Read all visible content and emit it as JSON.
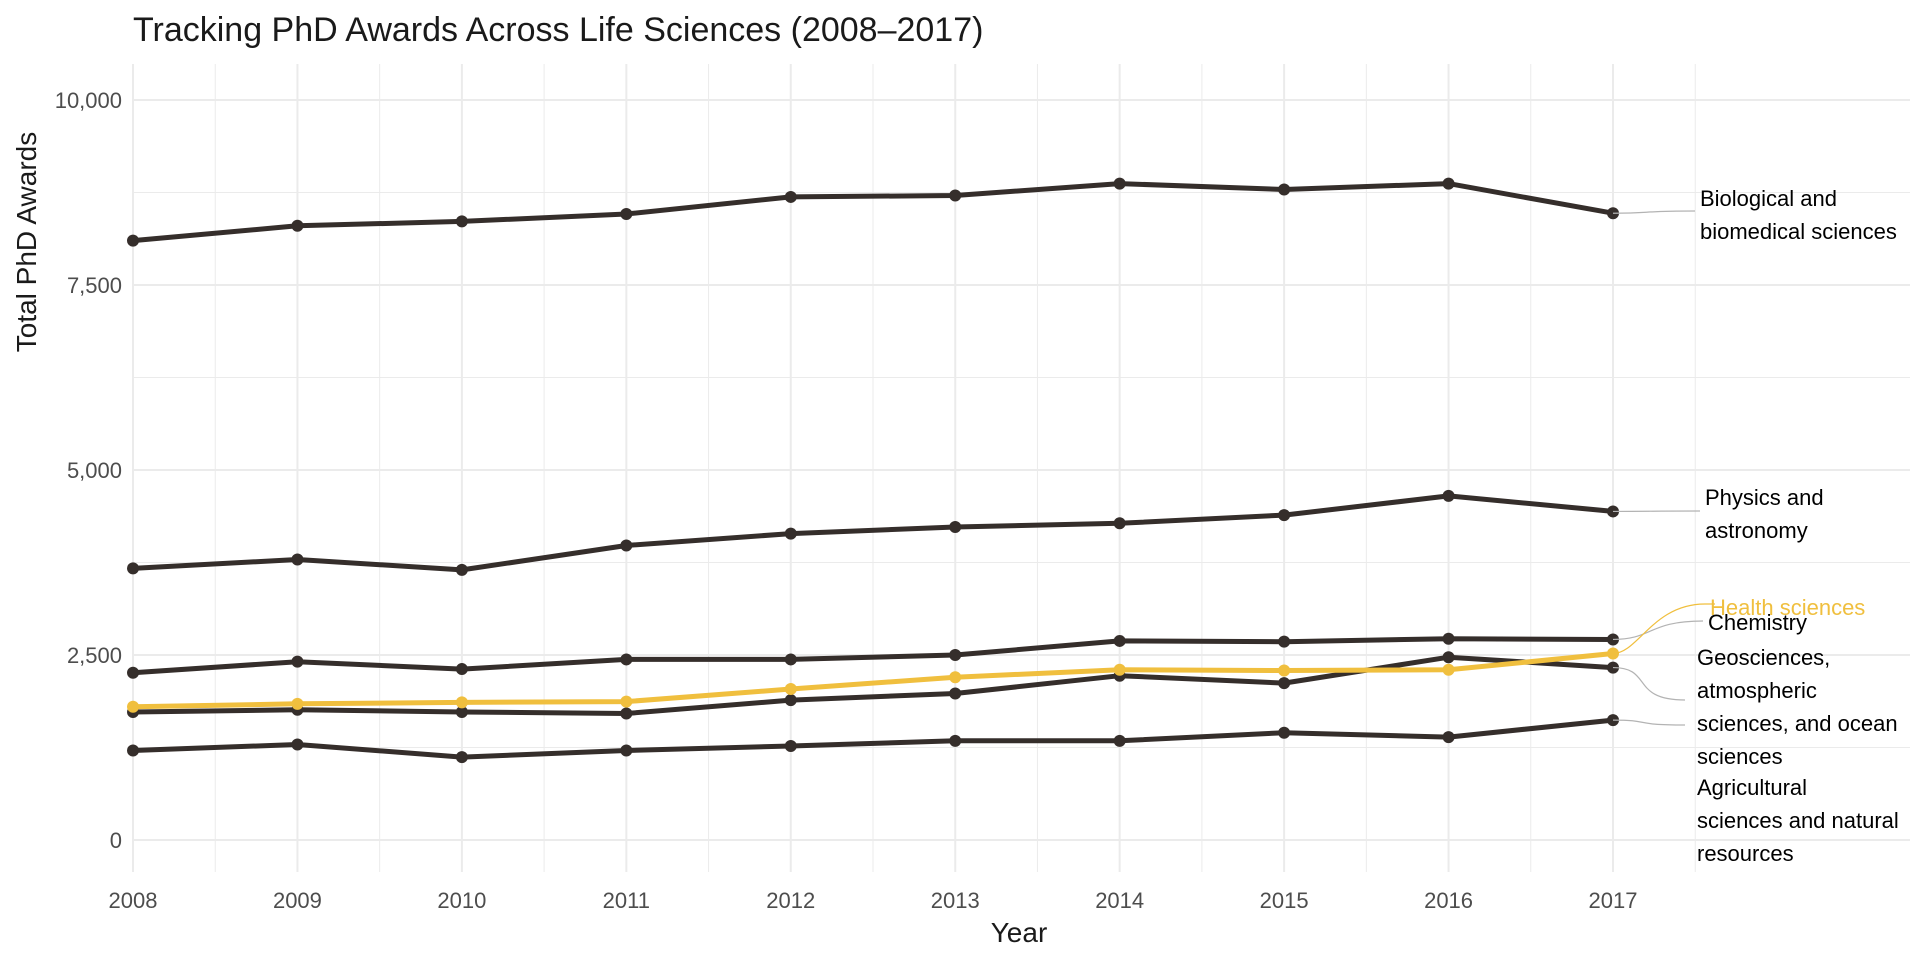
{
  "chart_data": {
    "type": "line",
    "title": "Tracking PhD Awards Across Life Sciences (2008–2017)",
    "xlabel": "Year",
    "ylabel": "Total PhD Awards",
    "x": [
      2008,
      2009,
      2010,
      2011,
      2012,
      2013,
      2014,
      2015,
      2016,
      2017
    ],
    "ylim": [
      -500,
      10500
    ],
    "y_ticks": [
      0,
      2500,
      5000,
      7500,
      10000
    ],
    "y_tick_labels": [
      "0",
      "2,500",
      "5,000",
      "7,500",
      "10,000"
    ],
    "x_tick_labels": [
      "2008",
      "2009",
      "2010",
      "2011",
      "2012",
      "2013",
      "2014",
      "2015",
      "2016",
      "2017"
    ],
    "grid": true,
    "legend": "none",
    "colors": {
      "default": "#352e2b",
      "highlight": "#f0bf3e",
      "gridline": "#ebebeb",
      "leader": "#b3b3b3"
    },
    "series": [
      {
        "name": "Biological and biomedical sciences",
        "label_lines": [
          "Biological and",
          "biomedical sciences"
        ],
        "values": [
          8100,
          8300,
          8360,
          8460,
          8690,
          8710,
          8870,
          8790,
          8870,
          8470
        ],
        "color": "#352e2b"
      },
      {
        "name": "Physics and astronomy",
        "label_lines": [
          "Physics and",
          "astronomy"
        ],
        "values": [
          3670,
          3790,
          3650,
          3980,
          4140,
          4230,
          4280,
          4390,
          4650,
          4440
        ],
        "color": "#352e2b"
      },
      {
        "name": "Chemistry",
        "label_lines": [
          "Chemistry"
        ],
        "values": [
          2260,
          2410,
          2310,
          2440,
          2440,
          2500,
          2690,
          2680,
          2720,
          2710
        ],
        "color": "#352e2b"
      },
      {
        "name": "Geosciences, atmospheric sciences, and ocean sciences",
        "label_lines": [
          "Geosciences,",
          "atmospheric",
          "sciences, and ocean",
          "sciences"
        ],
        "values": [
          1730,
          1760,
          1730,
          1710,
          1890,
          1980,
          2220,
          2120,
          2470,
          2330
        ],
        "color": "#352e2b"
      },
      {
        "name": "Agricultural sciences and natural resources",
        "label_lines": [
          "Agricultural",
          "sciences and natural",
          "resources"
        ],
        "values": [
          1210,
          1290,
          1120,
          1210,
          1270,
          1340,
          1340,
          1450,
          1390,
          1620
        ],
        "color": "#352e2b"
      },
      {
        "name": "Health sciences",
        "label_lines": [
          "Health sciences"
        ],
        "values": [
          1800,
          1840,
          1860,
          1870,
          2040,
          2200,
          2300,
          2290,
          2300,
          2520
        ],
        "color": "#f0bf3e",
        "highlight": true
      }
    ]
  }
}
